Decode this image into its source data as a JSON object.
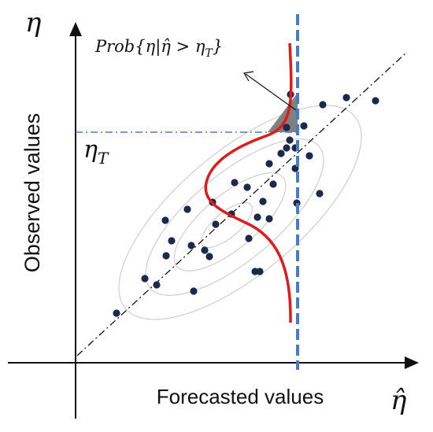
{
  "labels": {
    "y_symbol": "η",
    "x_symbol": "η̂",
    "threshold_label": "η",
    "threshold_sub": "T",
    "prob_prefix": "Prob{η|",
    "prob_hat": "η̂",
    "prob_rel": " > η",
    "prob_sub": "T",
    "prob_suffix": "}",
    "y_axis_label": "Observed values",
    "x_axis_label": "Forecasted values"
  },
  "colors": {
    "axis": "#111111",
    "points": "#1b2a4a",
    "density_curve": "#e01b1b",
    "forecast_line": "#4a7bc8",
    "threshold_line": "#4a7bc8",
    "shaded_region": "#808080",
    "contours": "#d2d2d2"
  },
  "points": [
    [
      148,
      398
    ],
    [
      184,
      354
    ],
    [
      199,
      362
    ],
    [
      211,
      325
    ],
    [
      210,
      280
    ],
    [
      218,
      306
    ],
    [
      238,
      266
    ],
    [
      243,
      312
    ],
    [
      246,
      370
    ],
    [
      260,
      318
    ],
    [
      266,
      326
    ],
    [
      270,
      257
    ],
    [
      274,
      285
    ],
    [
      294,
      272
    ],
    [
      298,
      232
    ],
    [
      314,
      238
    ],
    [
      316,
      303
    ],
    [
      327,
      276
    ],
    [
      330,
      345
    ],
    [
      334,
      256
    ],
    [
      342,
      278
    ],
    [
      342,
      208
    ],
    [
      347,
      234
    ],
    [
      357,
      195
    ],
    [
      364,
      188
    ],
    [
      364,
      162
    ],
    [
      369,
      120
    ],
    [
      368,
      178
    ],
    [
      375,
      188
    ],
    [
      375,
      214
    ],
    [
      377,
      258
    ],
    [
      386,
      160
    ],
    [
      393,
      198
    ],
    [
      406,
      246
    ],
    [
      410,
      133
    ],
    [
      440,
      124
    ],
    [
      477,
      128
    ],
    [
      324,
      345
    ]
  ]
}
